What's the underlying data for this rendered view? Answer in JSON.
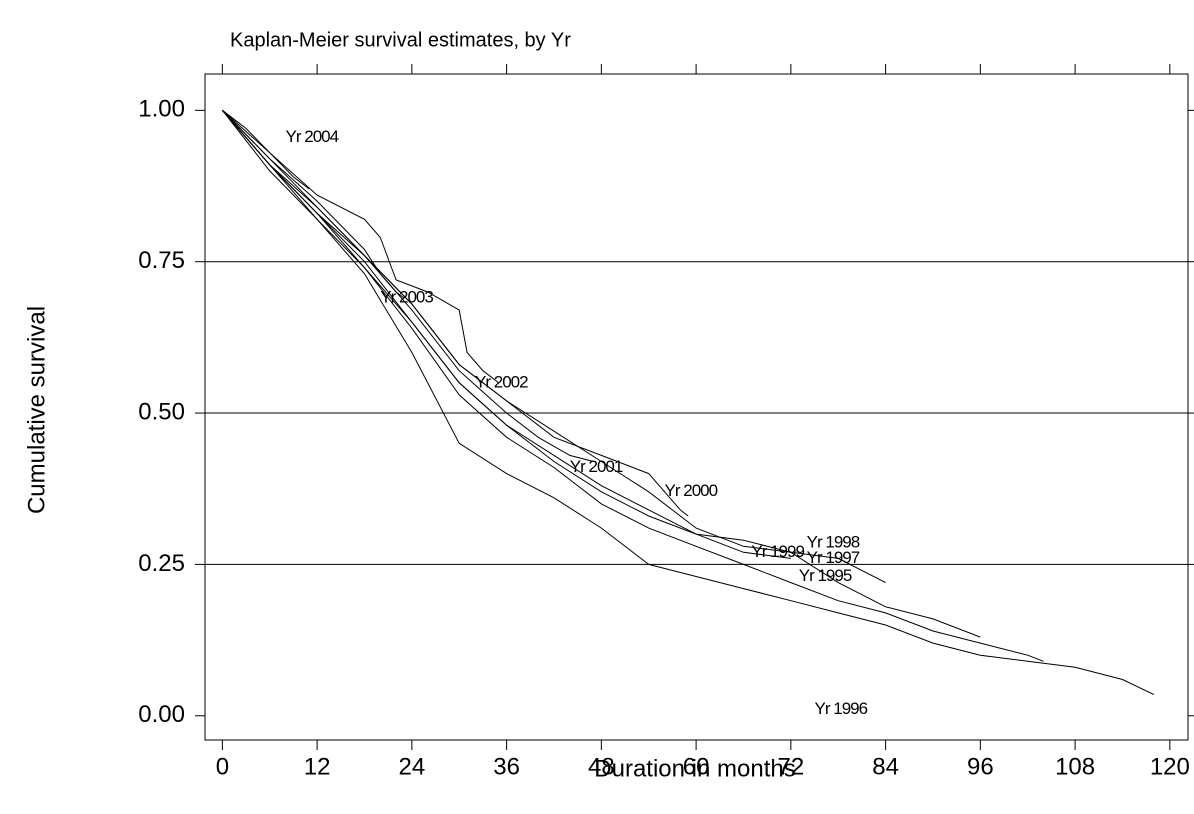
{
  "chart_data": {
    "type": "line",
    "title": "Kaplan-Meier survival estimates, by Yr",
    "x_label": "Duration in months",
    "y_label": "Cumulative survival",
    "xlim": [
      -2.2,
      122.3
    ],
    "ylim": [
      -0.04,
      1.06
    ],
    "xticks": [
      0,
      12,
      24,
      36,
      48,
      60,
      72,
      84,
      96,
      108,
      120
    ],
    "yticks": [
      {
        "value": 0,
        "label": "0.00"
      },
      {
        "value": 0.25,
        "label": "0.25"
      },
      {
        "value": 0.5,
        "label": "0.50"
      },
      {
        "value": 0.75,
        "label": "0.75"
      },
      {
        "value": 1,
        "label": "1.00"
      }
    ],
    "grid": true,
    "series": [
      {
        "name": "Yr 2004",
        "color": "#000000",
        "x": [
          0,
          3,
          6,
          9,
          11
        ],
        "values": [
          1,
          0.97,
          0.93,
          0.89,
          0.87
        ]
      },
      {
        "name": "Yr 2003",
        "color": "#000000",
        "x": [
          0,
          6,
          12,
          18,
          20,
          22,
          23
        ],
        "values": [
          1,
          0.92,
          0.85,
          0.77,
          0.73,
          0.7,
          0.69
        ]
      },
      {
        "name": "Yr 2002",
        "color": "#000000",
        "x": [
          0,
          6,
          12,
          18,
          20,
          22,
          26,
          30,
          31,
          33,
          35
        ],
        "values": [
          1,
          0.93,
          0.86,
          0.82,
          0.79,
          0.72,
          0.7,
          0.67,
          0.6,
          0.57,
          0.55
        ]
      },
      {
        "name": "Yr 2001",
        "color": "#000000",
        "x": [
          0,
          6,
          12,
          18,
          24,
          30,
          36,
          40,
          44,
          47
        ],
        "values": [
          1,
          0.92,
          0.84,
          0.76,
          0.67,
          0.57,
          0.5,
          0.46,
          0.43,
          0.42
        ]
      },
      {
        "name": "Yr 2000",
        "color": "#000000",
        "x": [
          0,
          6,
          12,
          18,
          24,
          30,
          36,
          42,
          48,
          54,
          58,
          59
        ],
        "values": [
          1,
          0.91,
          0.84,
          0.76,
          0.68,
          0.58,
          0.52,
          0.46,
          0.43,
          0.4,
          0.34,
          0.33
        ]
      },
      {
        "name": "Yr 1999",
        "color": "#000000",
        "x": [
          0,
          6,
          12,
          18,
          24,
          30,
          36,
          42,
          48,
          54,
          60,
          66,
          72
        ],
        "values": [
          1,
          0.91,
          0.83,
          0.74,
          0.65,
          0.55,
          0.48,
          0.43,
          0.38,
          0.34,
          0.3,
          0.27,
          0.26
        ]
      },
      {
        "name": "Yr 1998",
        "color": "#000000",
        "x": [
          0,
          6,
          12,
          18,
          24,
          30,
          36,
          42,
          48,
          54,
          60,
          66,
          72,
          78,
          84
        ],
        "values": [
          1,
          0.91,
          0.83,
          0.76,
          0.68,
          0.58,
          0.52,
          0.47,
          0.42,
          0.37,
          0.31,
          0.28,
          0.27,
          0.26,
          0.22
        ]
      },
      {
        "name": "Yr 1997",
        "color": "#000000",
        "x": [
          0,
          6,
          12,
          18,
          24,
          30,
          36,
          42,
          48,
          54,
          60,
          66,
          72,
          78,
          84,
          90,
          96
        ],
        "values": [
          1,
          0.91,
          0.83,
          0.75,
          0.65,
          0.55,
          0.48,
          0.42,
          0.37,
          0.33,
          0.3,
          0.29,
          0.27,
          0.22,
          0.18,
          0.16,
          0.13
        ]
      },
      {
        "name": "Yr 1995",
        "color": "#000000",
        "x": [
          0,
          6,
          12,
          18,
          24,
          30,
          36,
          42,
          48,
          54,
          60,
          66,
          72,
          78,
          84,
          90,
          96,
          102,
          104
        ],
        "values": [
          1,
          0.91,
          0.82,
          0.74,
          0.64,
          0.53,
          0.46,
          0.41,
          0.35,
          0.31,
          0.28,
          0.25,
          0.22,
          0.19,
          0.17,
          0.14,
          0.12,
          0.1,
          0.09
        ]
      },
      {
        "name": "Yr 1996",
        "color": "#000000",
        "x": [
          0,
          6,
          12,
          18,
          24,
          30,
          36,
          42,
          48,
          54,
          60,
          66,
          72,
          78,
          84,
          90,
          96,
          102,
          108,
          114,
          118
        ],
        "values": [
          1,
          0.9,
          0.82,
          0.73,
          0.6,
          0.45,
          0.4,
          0.36,
          0.31,
          0.25,
          0.23,
          0.21,
          0.19,
          0.17,
          0.15,
          0.12,
          0.1,
          0.09,
          0.08,
          0.06,
          0.035
        ]
      }
    ]
  }
}
